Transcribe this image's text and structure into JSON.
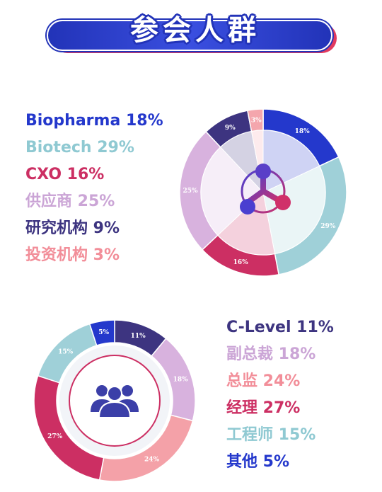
{
  "header": {
    "title": "参会人群"
  },
  "chart_data": [
    {
      "type": "pie",
      "categories": [
        "Biopharma",
        "Biotech",
        "CXO",
        "供应商",
        "研究机构",
        "投资机构"
      ],
      "values": [
        18,
        29,
        16,
        25,
        9,
        3
      ],
      "colors": [
        "#2438cc",
        "#9fd0d8",
        "#cc2f63",
        "#d8b2de",
        "#3d3480",
        "#f4a6ad"
      ],
      "legend": [
        {
          "label": "Biopharma 18%",
          "color": "#2438cc"
        },
        {
          "label": "Biotech 29%",
          "color": "#8fc9d2"
        },
        {
          "label": "CXO 16%",
          "color": "#cc2f63"
        },
        {
          "label": "供应商 25%",
          "color": "#cba5d6"
        },
        {
          "label": "研究机构 9%",
          "color": "#3d3480"
        },
        {
          "label": "投资机构 3%",
          "color": "#f28e99"
        }
      ],
      "segment_labels": [
        "18%",
        "29%",
        "16%",
        "25%",
        "9%",
        "3%"
      ],
      "center_icon": "network-logo-icon"
    },
    {
      "type": "pie",
      "categories": [
        "C-Level",
        "副总裁",
        "总监",
        "经理",
        "工程师",
        "其他"
      ],
      "values": [
        11,
        18,
        24,
        27,
        15,
        5
      ],
      "colors": [
        "#3d3480",
        "#d8b2de",
        "#f4a1a8",
        "#cc2f63",
        "#9fd0d8",
        "#2438cc"
      ],
      "legend": [
        {
          "label": "C-Level 11%",
          "color": "#3d3480"
        },
        {
          "label": "副总裁 18%",
          "color": "#cba5d6"
        },
        {
          "label": "总监 24%",
          "color": "#f28e99"
        },
        {
          "label": "经理 27%",
          "color": "#cc2f63"
        },
        {
          "label": "工程师 15%",
          "color": "#8fc9d2"
        },
        {
          "label": "其他 5%",
          "color": "#2438cc"
        }
      ],
      "segment_labels": [
        "11%",
        "18%",
        "24%",
        "27%",
        "15%",
        "5%"
      ],
      "center_icon": "people-group-icon"
    }
  ]
}
